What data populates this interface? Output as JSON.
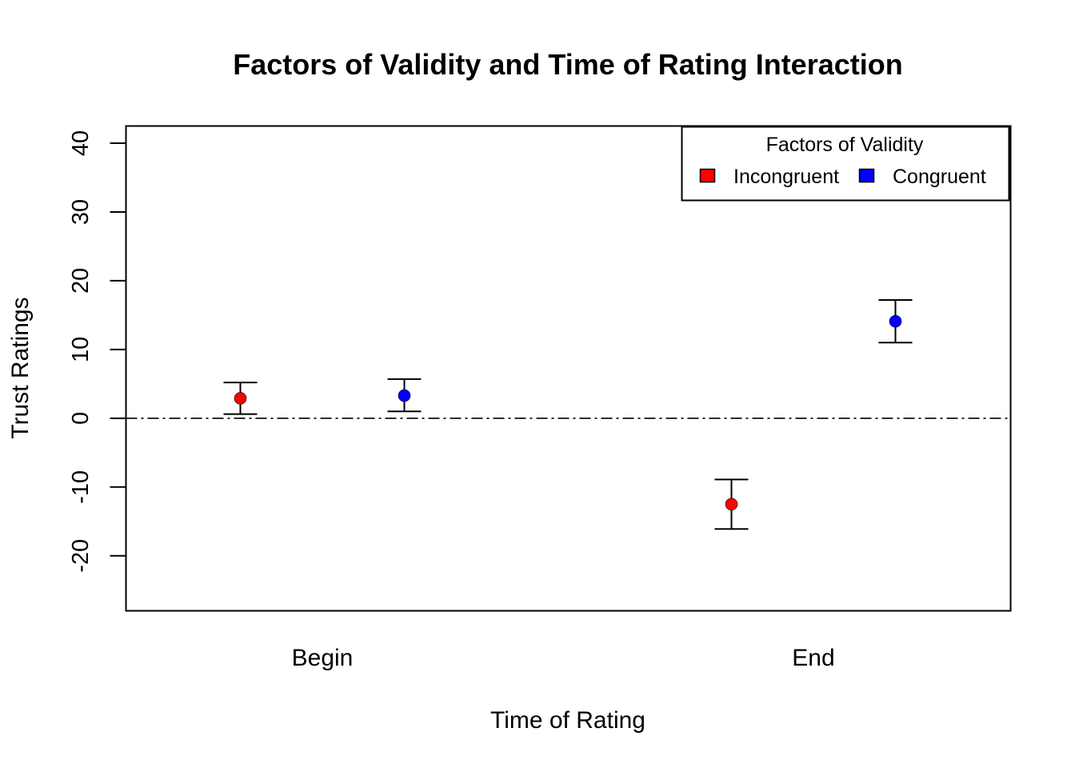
{
  "chart_data": {
    "type": "scatter",
    "title": "Factors of Validity and Time of Rating Interaction",
    "xlabel": "Time of Rating",
    "ylabel": "Trust Ratings",
    "categories": [
      "Begin",
      "End"
    ],
    "ylim": [
      -28,
      42.5
    ],
    "yticks": [
      "-20",
      "-10",
      "0",
      "10",
      "20",
      "30",
      "40"
    ],
    "reference_line": {
      "y": 0,
      "style": "dash-dot"
    },
    "legend": {
      "title": "Factors of Validity",
      "placement": "top-right",
      "entries": [
        {
          "label": "Incongruent",
          "color": "#ff0000"
        },
        {
          "label": "Congruent",
          "color": "#0000ff"
        }
      ]
    },
    "series": [
      {
        "name": "Incongruent",
        "color": "#ff0000",
        "points": [
          {
            "category": "Begin",
            "y": 2.9,
            "lower": 0.6,
            "upper": 5.2
          },
          {
            "category": "End",
            "y": -12.5,
            "lower": -16.1,
            "upper": -8.9
          }
        ]
      },
      {
        "name": "Congruent",
        "color": "#0000ff",
        "points": [
          {
            "category": "Begin",
            "y": 3.3,
            "lower": 1.0,
            "upper": 5.7
          },
          {
            "category": "End",
            "y": 14.1,
            "lower": 11.0,
            "upper": 17.2
          }
        ]
      }
    ]
  }
}
